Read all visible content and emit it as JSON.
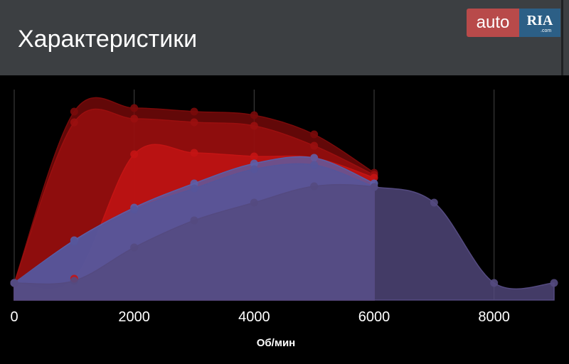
{
  "header": {
    "title": "Характеристики",
    "logo": {
      "left": "auto",
      "right": "RIA",
      "small": ".com"
    }
  },
  "chart_data": {
    "type": "area",
    "x_label": "Об/мин",
    "x": [
      0,
      1000,
      2000,
      3000,
      4000,
      5000,
      6000,
      7000,
      8000,
      9000
    ],
    "xlim": [
      0,
      9000
    ],
    "xticks": [
      0,
      2000,
      4000,
      6000,
      8000
    ],
    "ylim": [
      0,
      300
    ],
    "grid": true,
    "series": [
      {
        "color": "#7a0a0a",
        "values": [
          24,
          265,
          270,
          265,
          260,
          233,
          179,
          null,
          null,
          null
        ]
      },
      {
        "color": "#9a0f0f",
        "values": [
          24,
          250,
          255,
          250,
          245,
          217,
          176,
          null,
          null,
          null
        ]
      },
      {
        "color": "#c41414",
        "values": [
          24,
          30,
          205,
          207,
          202,
          200,
          172,
          null,
          null,
          null
        ]
      },
      {
        "color": "#5b5fa8",
        "values": [
          24,
          84,
          130,
          164,
          192,
          200,
          164,
          null,
          null,
          null
        ]
      },
      {
        "color": "#55559a",
        "values": [
          24,
          82,
          127,
          157,
          184,
          190,
          159,
          null,
          null,
          null
        ]
      },
      {
        "color": "#544a80",
        "values": [
          24,
          27,
          74,
          112,
          137,
          160,
          159,
          137,
          24,
          24
        ]
      }
    ]
  }
}
